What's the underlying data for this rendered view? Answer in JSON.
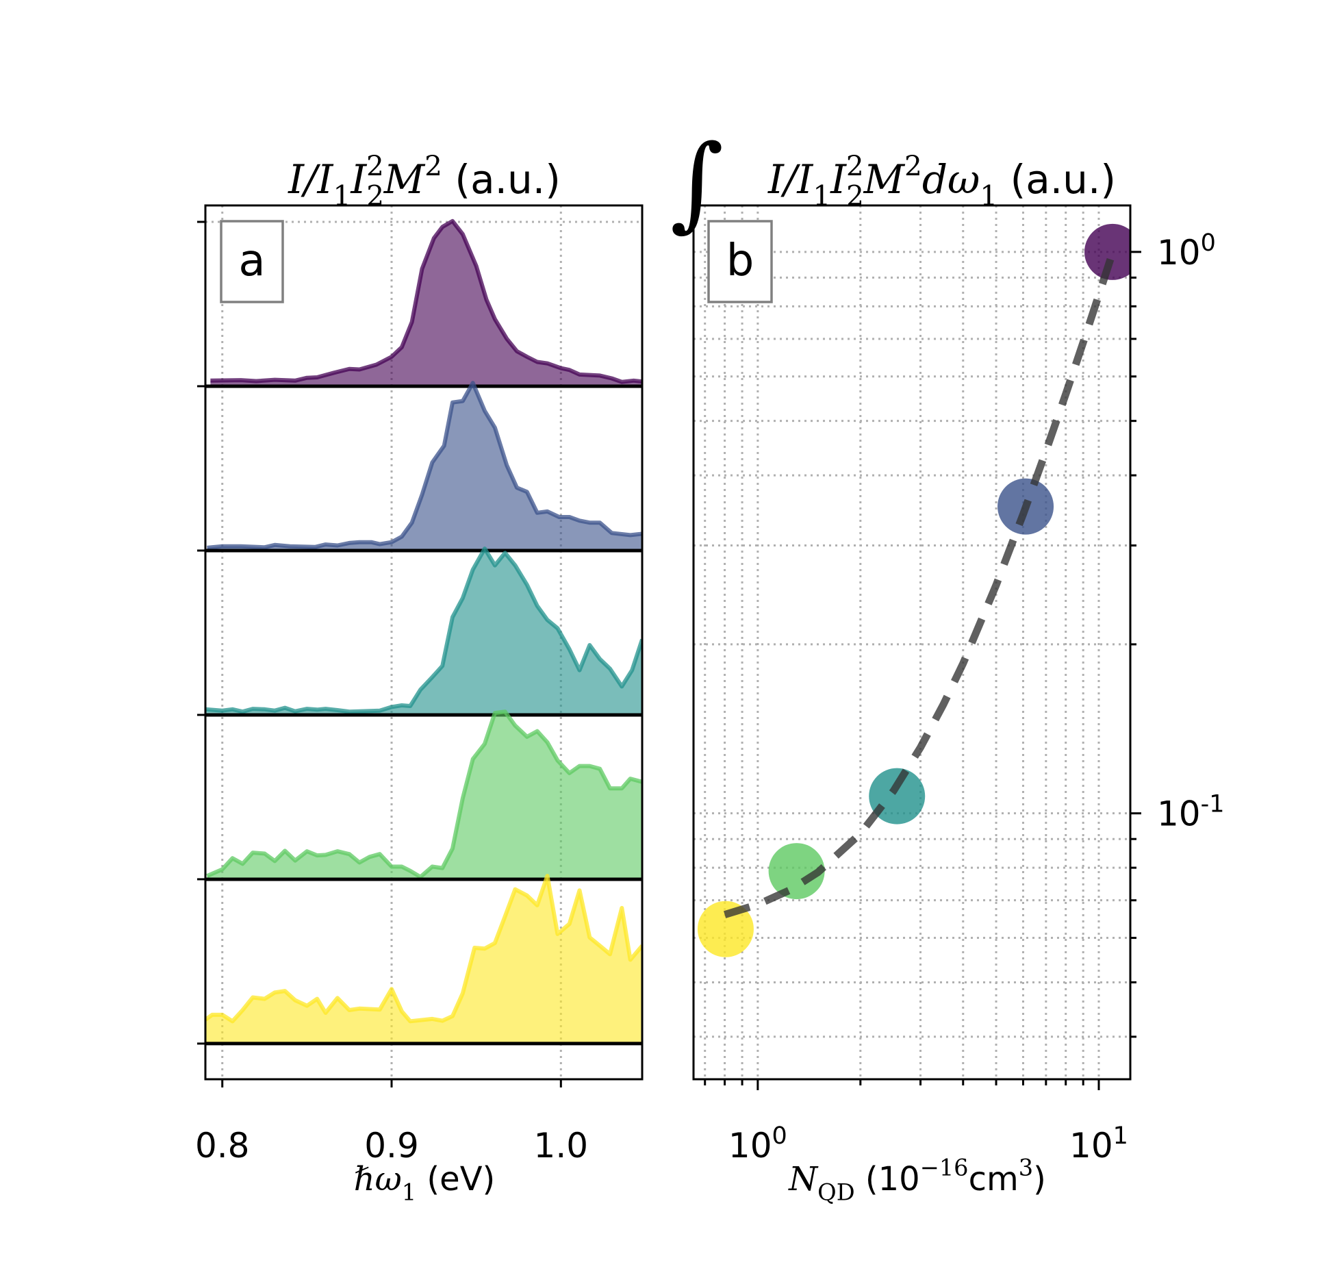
{
  "chart_data": [
    {
      "type": "area",
      "panel_label": "a",
      "title": [
        {
          "text": "I/I",
          "role": "it"
        },
        {
          "text": "1",
          "role": "sub"
        },
        {
          "text": "I",
          "role": "it"
        },
        {
          "text": "2",
          "role": "sub"
        },
        {
          "text": "2",
          "role": "supback"
        },
        {
          "text": "M",
          "role": "it"
        },
        {
          "text": "2",
          "role": "sup"
        },
        {
          "text": " (a.u.)",
          "role": "n"
        }
      ],
      "xlabel": [
        {
          "text": "ℏω",
          "role": "it"
        },
        {
          "text": "1",
          "role": "sub"
        },
        {
          "text": " (eV)",
          "role": "n"
        }
      ],
      "xlim": [
        0.79,
        1.048
      ],
      "ylim": [
        -0.217,
        5.1
      ],
      "x_ticks": [
        0.8,
        0.9,
        1.0
      ],
      "x_tick_labels": [
        "0.8",
        "0.9",
        "1.0"
      ],
      "y_ticks": [
        0,
        1,
        2,
        3,
        4,
        5
      ],
      "grid": "dotted",
      "stacked_offset": 1,
      "series": [
        {
          "color": "#440154",
          "offset": 4,
          "x": [
            0.793,
            0.811,
            0.82,
            0.831,
            0.843,
            0.85,
            0.856,
            0.866,
            0.875,
            0.881,
            0.891,
            0.9,
            0.906,
            0.912,
            0.918,
            0.925,
            0.93,
            0.936,
            0.942,
            0.95,
            0.956,
            0.961,
            0.968,
            0.974,
            0.98,
            0.986,
            0.992,
            1.0,
            1.005,
            1.011,
            1.023,
            1.03,
            1.036,
            1.043,
            1.05
          ],
          "y": [
            0.034,
            0.037,
            0.031,
            0.039,
            0.034,
            0.051,
            0.054,
            0.082,
            0.105,
            0.102,
            0.131,
            0.179,
            0.238,
            0.391,
            0.714,
            0.901,
            0.969,
            1.005,
            0.925,
            0.731,
            0.527,
            0.408,
            0.289,
            0.213,
            0.179,
            0.148,
            0.139,
            0.11,
            0.099,
            0.071,
            0.065,
            0.048,
            0.026,
            0.034,
            0.026
          ]
        },
        {
          "color": "#3b528b",
          "offset": 3,
          "x": [
            0.791,
            0.8,
            0.811,
            0.825,
            0.831,
            0.84,
            0.855,
            0.861,
            0.868,
            0.875,
            0.881,
            0.888,
            0.893,
            0.9,
            0.906,
            0.912,
            0.918,
            0.924,
            0.931,
            0.936,
            0.942,
            0.948,
            0.955,
            0.961,
            0.968,
            0.974,
            0.98,
            0.986,
            0.992,
            0.999,
            1.005,
            1.011,
            1.017,
            1.023,
            1.03,
            1.041,
            1.048
          ],
          "y": [
            0.017,
            0.026,
            0.026,
            0.02,
            0.034,
            0.026,
            0.022,
            0.037,
            0.031,
            0.046,
            0.051,
            0.051,
            0.039,
            0.051,
            0.085,
            0.17,
            0.34,
            0.536,
            0.638,
            0.901,
            0.91,
            1.02,
            0.85,
            0.748,
            0.519,
            0.383,
            0.357,
            0.23,
            0.238,
            0.204,
            0.204,
            0.182,
            0.17,
            0.17,
            0.107,
            0.094,
            0.102
          ]
        },
        {
          "color": "#21918c",
          "offset": 2,
          "x": [
            0.79,
            0.8,
            0.806,
            0.812,
            0.818,
            0.825,
            0.831,
            0.837,
            0.843,
            0.85,
            0.856,
            0.861,
            0.868,
            0.875,
            0.893,
            0.9,
            0.906,
            0.911,
            0.917,
            0.924,
            0.93,
            0.936,
            0.942,
            0.948,
            0.955,
            0.961,
            0.967,
            0.973,
            0.98,
            0.986,
            0.992,
            0.998,
            1.005,
            1.011,
            1.017,
            1.023,
            1.029,
            1.036,
            1.042,
            1.048
          ],
          "y": [
            0.034,
            0.026,
            0.034,
            0.02,
            0.037,
            0.034,
            0.026,
            0.043,
            0.022,
            0.037,
            0.032,
            0.037,
            0.029,
            0.02,
            0.026,
            0.048,
            0.058,
            0.054,
            0.153,
            0.23,
            0.298,
            0.595,
            0.711,
            0.884,
            1.012,
            0.91,
            0.986,
            0.91,
            0.791,
            0.663,
            0.578,
            0.527,
            0.4,
            0.272,
            0.425,
            0.34,
            0.281,
            0.173,
            0.272,
            0.459
          ]
        },
        {
          "color": "#5ec962",
          "offset": 1,
          "x": [
            0.791,
            0.8,
            0.806,
            0.812,
            0.818,
            0.825,
            0.831,
            0.837,
            0.843,
            0.85,
            0.856,
            0.861,
            0.868,
            0.875,
            0.881,
            0.887,
            0.893,
            0.9,
            0.906,
            0.911,
            0.917,
            0.924,
            0.93,
            0.936,
            0.942,
            0.948,
            0.955,
            0.961,
            0.967,
            0.973,
            0.98,
            0.986,
            0.992,
            0.998,
            1.005,
            1.011,
            1.017,
            1.023,
            1.029,
            1.036,
            1.041,
            1.05
          ],
          "y": [
            0.02,
            0.06,
            0.128,
            0.094,
            0.162,
            0.156,
            0.111,
            0.173,
            0.114,
            0.17,
            0.145,
            0.148,
            0.17,
            0.153,
            0.102,
            0.136,
            0.153,
            0.077,
            0.077,
            0.051,
            0.014,
            0.077,
            0.068,
            0.187,
            0.493,
            0.731,
            0.824,
            1.012,
            1.02,
            0.935,
            0.867,
            0.901,
            0.833,
            0.723,
            0.646,
            0.689,
            0.689,
            0.672,
            0.553,
            0.553,
            0.612,
            0.587
          ]
        },
        {
          "color": "#fde725",
          "offset": 0,
          "x": [
            0.79,
            0.794,
            0.8,
            0.806,
            0.812,
            0.818,
            0.825,
            0.831,
            0.837,
            0.843,
            0.85,
            0.856,
            0.861,
            0.868,
            0.875,
            0.881,
            0.893,
            0.9,
            0.906,
            0.911,
            0.924,
            0.93,
            0.936,
            0.942,
            0.949,
            0.955,
            0.961,
            0.967,
            0.973,
            0.98,
            0.986,
            0.992,
            0.998,
            1.005,
            1.011,
            1.017,
            1.023,
            1.029,
            1.036,
            1.041,
            1.048
          ],
          "y": [
            0.145,
            0.175,
            0.175,
            0.136,
            0.204,
            0.281,
            0.272,
            0.311,
            0.32,
            0.264,
            0.23,
            0.272,
            0.187,
            0.277,
            0.204,
            0.213,
            0.207,
            0.332,
            0.196,
            0.136,
            0.15,
            0.139,
            0.167,
            0.306,
            0.583,
            0.578,
            0.612,
            0.774,
            0.939,
            0.901,
            0.842,
            1.02,
            0.667,
            0.728,
            0.932,
            0.646,
            0.595,
            0.544,
            0.825,
            0.51,
            0.595
          ]
        }
      ]
    },
    {
      "type": "scatter",
      "panel_label": "b",
      "title_integral": "∫",
      "title": [
        {
          "text": "I/I",
          "role": "it"
        },
        {
          "text": "1",
          "role": "sub"
        },
        {
          "text": "I",
          "role": "it"
        },
        {
          "text": "2",
          "role": "sub"
        },
        {
          "text": "2",
          "role": "supback"
        },
        {
          "text": "M",
          "role": "it"
        },
        {
          "text": "2",
          "role": "sup"
        },
        {
          "text": "dω",
          "role": "it"
        },
        {
          "text": "1",
          "role": "sub"
        },
        {
          "text": " (a.u.)",
          "role": "n"
        }
      ],
      "xlabel": [
        {
          "text": "N",
          "role": "it"
        },
        {
          "text": "QD",
          "role": "sub"
        },
        {
          "text": " (10",
          "role": "n"
        },
        {
          "text": "−16",
          "role": "sup"
        },
        {
          "text": "cm",
          "role": "n"
        },
        {
          "text": "3",
          "role": "sup"
        },
        {
          "text": ")",
          "role": "n"
        }
      ],
      "x_scale": "log",
      "y_scale": "log",
      "xlim": [
        0.648,
        12.37
      ],
      "ylim": [
        0.0336,
        1.21
      ],
      "x_tick_labels": [
        {
          "base": "10",
          "exp": "0",
          "value": 1
        },
        {
          "base": "10",
          "exp": "1",
          "value": 10
        }
      ],
      "y_tick_labels": [
        {
          "base": "10",
          "exp": "0",
          "value": 1
        },
        {
          "base": "10",
          "exp": "-1",
          "value": 0.1
        }
      ],
      "y_axis_side": "right",
      "grid": "dotted, major and minor",
      "points": [
        {
          "x": 0.805,
          "y": 0.0622,
          "color": "#fde725"
        },
        {
          "x": 1.3,
          "y": 0.0789,
          "color": "#5ec962"
        },
        {
          "x": 2.56,
          "y": 0.1073,
          "color": "#21918c"
        },
        {
          "x": 6.1,
          "y": 0.352,
          "color": "#3b528b"
        },
        {
          "x": 10.97,
          "y": 1.0,
          "color": "#440154"
        }
      ],
      "fit_line": {
        "style": "dashed",
        "color": "#333333",
        "x": [
          0.8,
          1.0,
          1.25,
          1.5,
          2,
          2.5,
          3,
          3.5,
          4,
          5,
          6,
          7,
          8,
          9,
          10,
          10.97
        ],
        "y": [
          0.066,
          0.0688,
          0.0731,
          0.0785,
          0.092,
          0.1096,
          0.131,
          0.1562,
          0.185,
          0.255,
          0.341,
          0.442,
          0.558,
          0.69,
          0.838,
          0.996
        ]
      }
    }
  ]
}
